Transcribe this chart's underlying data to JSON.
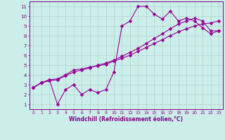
{
  "xlabel": "Windchill (Refroidissement éolien,°C)",
  "background_color": "#cceee8",
  "line_color": "#990099",
  "grid_color": "#aacccc",
  "xlim_min": -0.5,
  "xlim_max": 23.5,
  "ylim_min": 0.5,
  "ylim_max": 11.5,
  "xticks": [
    0,
    1,
    2,
    3,
    4,
    5,
    6,
    7,
    8,
    9,
    10,
    11,
    12,
    13,
    14,
    15,
    16,
    17,
    18,
    19,
    20,
    21,
    22,
    23
  ],
  "yticks": [
    1,
    2,
    3,
    4,
    5,
    6,
    7,
    8,
    9,
    10,
    11
  ],
  "line1_x": [
    0,
    1,
    2,
    3,
    4,
    5,
    6,
    7,
    8,
    9,
    10,
    11,
    12,
    13,
    14,
    15,
    16,
    17,
    18,
    19,
    20,
    21,
    22,
    23
  ],
  "line1_y": [
    2.7,
    3.2,
    3.5,
    3.6,
    4.0,
    4.5,
    4.6,
    4.8,
    4.9,
    5.1,
    5.4,
    5.7,
    6.0,
    6.4,
    6.8,
    7.2,
    7.6,
    8.0,
    8.4,
    8.7,
    9.0,
    9.2,
    9.3,
    9.5
  ],
  "line2_x": [
    0,
    1,
    2,
    3,
    4,
    5,
    6,
    7,
    8,
    9,
    10,
    11,
    12,
    13,
    14,
    15,
    16,
    17,
    18,
    19,
    20,
    21,
    22,
    23
  ],
  "line2_y": [
    2.7,
    3.2,
    3.4,
    3.5,
    3.9,
    4.3,
    4.5,
    4.7,
    5.0,
    5.2,
    5.5,
    5.9,
    6.3,
    6.7,
    7.2,
    7.7,
    8.2,
    8.7,
    9.2,
    9.5,
    9.8,
    9.5,
    8.5,
    8.5
  ],
  "line3_x": [
    0,
    1,
    2,
    3,
    4,
    5,
    6,
    7,
    8,
    9,
    10,
    11,
    12,
    13,
    14,
    15,
    16,
    17,
    18,
    19,
    20,
    21,
    22,
    23
  ],
  "line3_y": [
    2.7,
    3.2,
    3.5,
    1.0,
    2.5,
    3.0,
    2.0,
    2.5,
    2.2,
    2.5,
    4.3,
    9.0,
    9.5,
    11.0,
    11.0,
    10.2,
    9.7,
    10.5,
    9.5,
    9.8,
    9.5,
    8.8,
    8.2,
    8.5
  ],
  "markersize": 2.5,
  "linewidth": 0.8,
  "tick_color": "#880088",
  "label_color": "#880088",
  "xlabel_fontsize": 5.5,
  "xtick_fontsize": 4.5,
  "ytick_fontsize": 5.0
}
